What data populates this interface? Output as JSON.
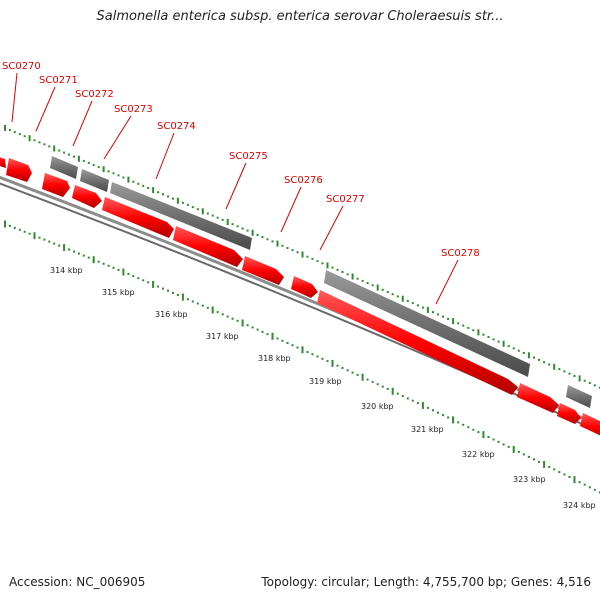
{
  "title": "Salmonella enterica subsp. enterica serovar Choleraesuis str...",
  "footer": {
    "accession": "Accession: NC_006905",
    "topology": "Topology: circular; Length: 4,755,700 bp; Genes: 4,516"
  },
  "colors": {
    "gene_forward": "#ff0000",
    "gene_reverse": "#707070",
    "ticks": "#2e8b2e",
    "labels": "#e00000",
    "backbone": "#8c8c8c"
  },
  "gene_labels": [
    "SC0270",
    "SC0271",
    "SC0272",
    "SC0273",
    "SC0274",
    "SC0275",
    "SC0276",
    "SC0277",
    "SC0278"
  ],
  "kbp_labels": [
    "314 kbp",
    "315 kbp",
    "316 kbp",
    "317 kbp",
    "318 kbp",
    "319 kbp",
    "320 kbp",
    "321 kbp",
    "322 kbp",
    "323 kbp",
    "324 kbp"
  ]
}
